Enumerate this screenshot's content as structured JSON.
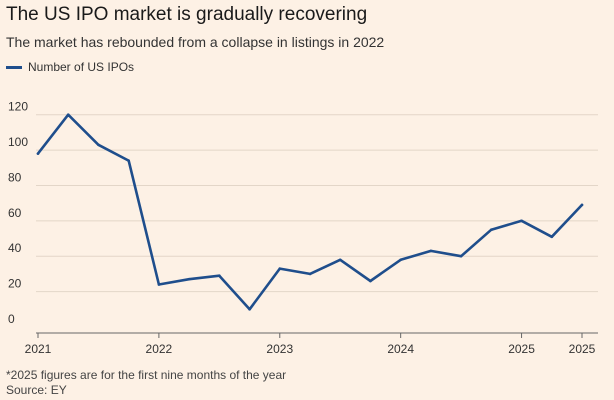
{
  "title": "The US IPO market is gradually recovering",
  "subtitle": "The market has rebounded from a collapse in listings in 2022",
  "legend_label": "Number of US IPOs",
  "footnote": "*2025 figures are for the first nine months of the year",
  "source": "Source: EY",
  "colors": {
    "background": "#fdf1e5",
    "line": "#1f4e8c",
    "grid": "#e3d6c8",
    "axis": "#666666"
  },
  "chart_data": {
    "type": "line",
    "title": "The US IPO market is gradually recovering",
    "subtitle": "The market has rebounded from a collapse in listings in 2022",
    "xlabel": "",
    "ylabel": "",
    "ylim": [
      0,
      130
    ],
    "yticks": [
      0,
      20,
      40,
      60,
      80,
      100,
      120
    ],
    "xlim": [
      0,
      18
    ],
    "xticks": [
      {
        "x": 0,
        "label": "2021"
      },
      {
        "x": 4,
        "label": "2022"
      },
      {
        "x": 8,
        "label": "2023"
      },
      {
        "x": 12,
        "label": "2024"
      },
      {
        "x": 16,
        "label": "2025"
      },
      {
        "x": 18,
        "label": "2025"
      }
    ],
    "series": [
      {
        "name": "Number of US IPOs",
        "x": [
          0,
          1,
          2,
          3,
          4,
          5,
          6,
          7,
          8,
          9,
          10,
          11,
          12,
          13,
          14,
          15,
          16,
          17,
          18
        ],
        "values": [
          98,
          120,
          103,
          94,
          24,
          27,
          29,
          10,
          33,
          30,
          38,
          26,
          38,
          43,
          40,
          55,
          60,
          51,
          69
        ]
      }
    ]
  }
}
